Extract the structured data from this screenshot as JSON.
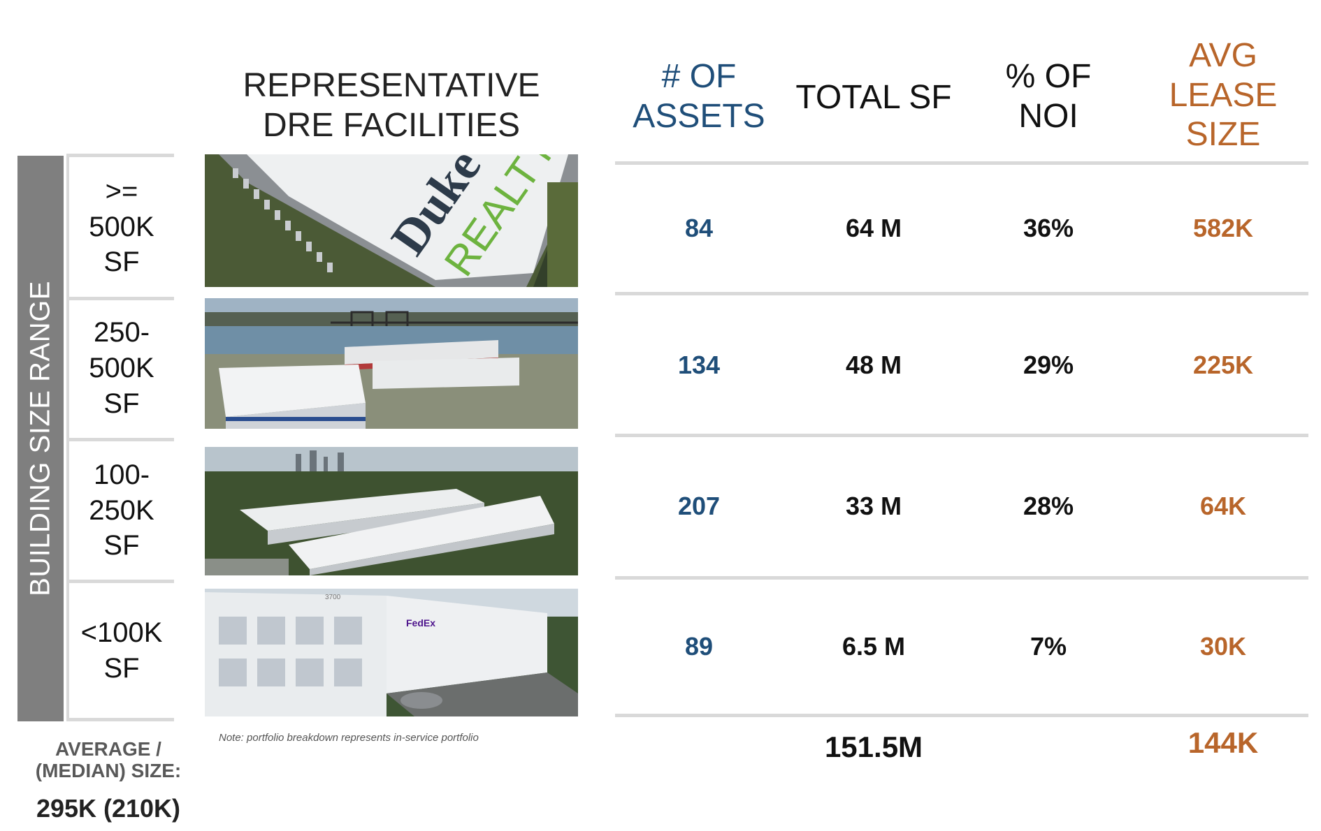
{
  "headers": {
    "facilities": "REPRESENTATIVE\nDRE FACILITIES",
    "assets": "# OF\nASSETS",
    "total_sf": "TOTAL SF",
    "noi": "% OF\nNOI",
    "lease": "AVG\nLEASE\nSIZE"
  },
  "side_label": "BUILDING SIZE RANGE",
  "colors": {
    "assets": "#1f4e79",
    "lease": "#b8652a",
    "side_bar": "#7f7f7f",
    "rules": "#d9d9d9"
  },
  "rows": [
    {
      "range": ">=\n500K\nSF",
      "assets": "84",
      "total_sf": "64 M",
      "noi": "36%",
      "lease": "582K",
      "photo": {
        "logo_top": "Duke",
        "logo_bottom": "REALTY"
      }
    },
    {
      "range": "250-\n500K\nSF",
      "assets": "134",
      "total_sf": "48 M",
      "noi": "29%",
      "lease": "225K"
    },
    {
      "range": "100-\n250K\nSF",
      "assets": "207",
      "total_sf": "33 M",
      "noi": "28%",
      "lease": "64K"
    },
    {
      "range": "<100K\nSF",
      "assets": "89",
      "total_sf": "6.5 M",
      "noi": "7%",
      "lease": "30K",
      "photo": {
        "number": "3700",
        "brand": "FedEx"
      }
    }
  ],
  "note": "Note: portfolio breakdown represents in-service portfolio",
  "average": {
    "label": "AVERAGE /\n(MEDIAN) SIZE:",
    "value": "295K (210K)"
  },
  "totals": {
    "total_sf": "151.5M",
    "lease": "144K"
  }
}
